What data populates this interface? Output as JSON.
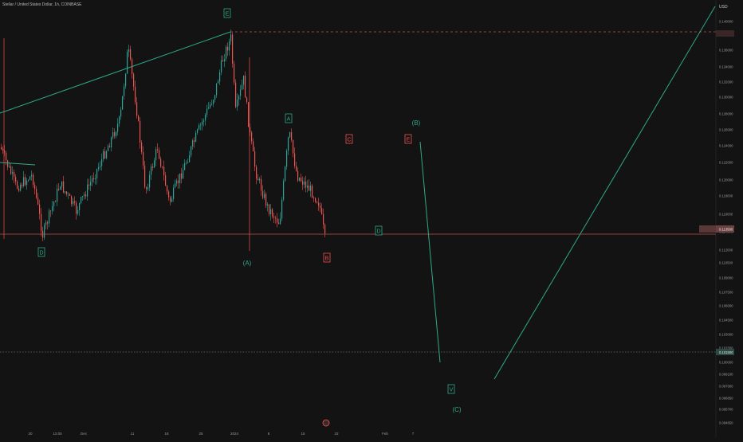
{
  "header": {
    "title": "Stellar / United States Dollar, 1h, COINBASE"
  },
  "price_axis": {
    "currency": "USD"
  },
  "chart_data": {
    "type": "candlestick",
    "instrument": "Stellar / United States Dollar",
    "interval": "1h",
    "exchange": "COINBASE",
    "y_ticks": [
      "0.140000",
      "0.138000",
      "0.136000",
      "0.134000",
      "0.132000",
      "0.130000",
      "0.128000",
      "0.126000",
      "0.124000",
      "0.122000",
      "0.120000",
      "0.118000",
      "0.116000",
      "0.114000",
      "0.112000",
      "0.110500",
      "0.109000",
      "0.107500",
      "0.106000",
      "0.104500",
      "0.103000",
      "0.101500",
      "0.100000",
      "0.099100",
      "0.097900",
      "0.096850",
      "0.095700",
      "0.094650"
    ],
    "x_ticks": [
      "20",
      "12:00",
      "Dec",
      "11",
      "18",
      "25",
      "2024",
      "8",
      "15",
      "22",
      "Feb",
      "7"
    ],
    "current_price_label": "0.113580",
    "level_label": "0.101500",
    "wave_labels": {
      "top": "E",
      "left_bottom": "D",
      "wave_a": "(A)",
      "a": "A",
      "c": "C",
      "e": "E",
      "b": "B",
      "wave_b": "(B)",
      "d": "D",
      "v": "V",
      "wave_c": "(C)"
    },
    "colors": {
      "background": "#131313",
      "up": "#26a69a",
      "down": "#ef5350",
      "accent_line": "#2ea98a",
      "level_red": "#c0504d"
    }
  }
}
